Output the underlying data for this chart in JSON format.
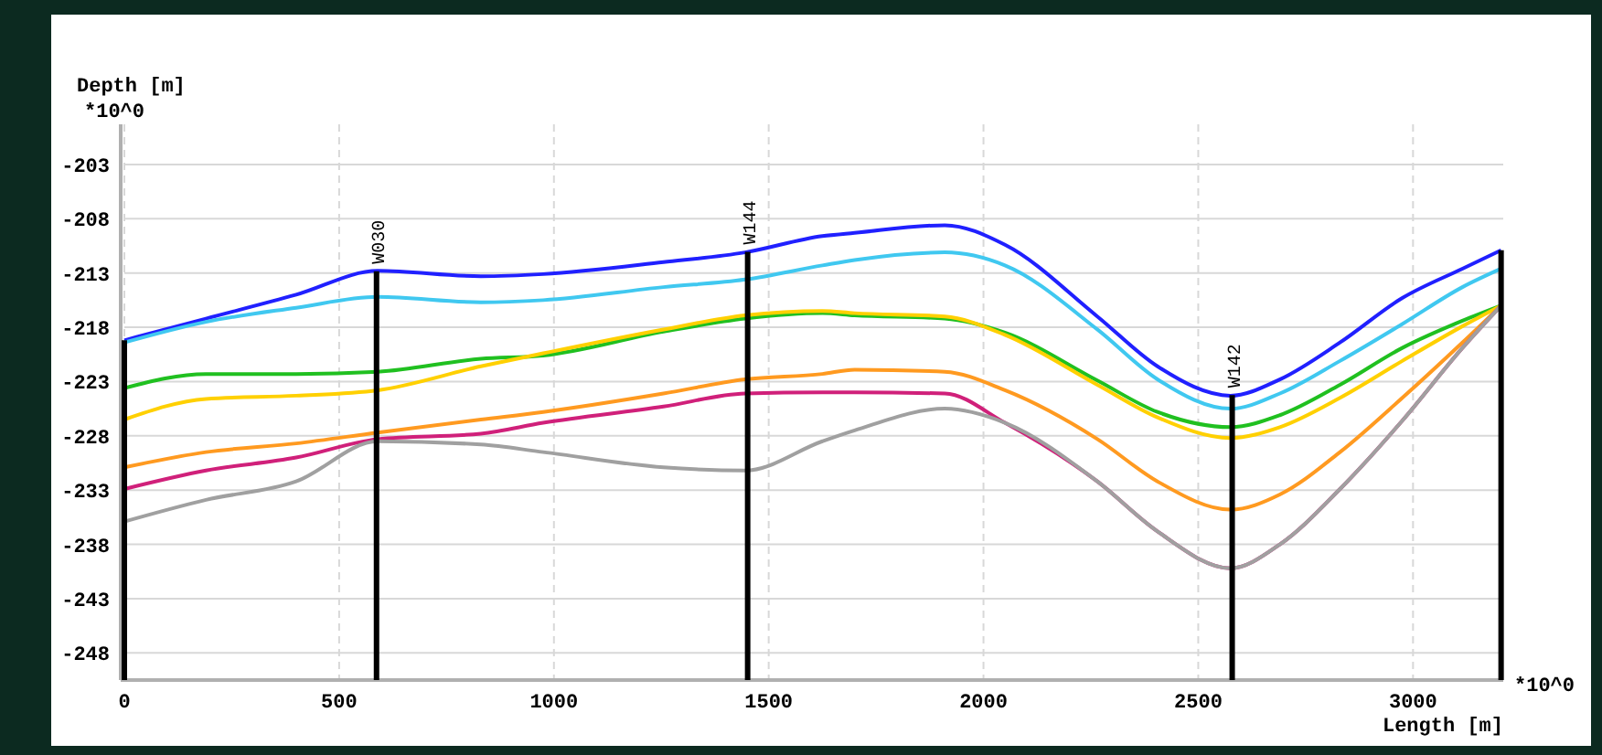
{
  "chart_data": {
    "type": "line",
    "xlabel": "Length [m]",
    "ylabel": "Depth [m]",
    "annotations": [
      "*10^0",
      "*10^0"
    ],
    "xlim": [
      0,
      3210
    ],
    "xticks": [
      0,
      500,
      1000,
      1500,
      2000,
      2500,
      3000
    ],
    "ylim": [
      -250.5,
      -199.3
    ],
    "yticks": [
      -203,
      -208,
      -213,
      -218,
      -223,
      -228,
      -233,
      -238,
      -243,
      -248
    ],
    "grid": true,
    "marker": "none",
    "line_style": "solid",
    "x": [
      0,
      190,
      400,
      590,
      830,
      975,
      1255,
      1445,
      1625,
      1700,
      1910,
      2050,
      2265,
      2405,
      2575,
      2690,
      2830,
      2975,
      3115,
      3205
    ],
    "series": [
      {
        "color": "#2020ff",
        "values": [
          -219.2,
          -217.2,
          -215.0,
          -212.8,
          -213.3,
          -213.1,
          -212.0,
          -211.1,
          -209.6,
          -209.3,
          -208.6,
          -210.4,
          -217.0,
          -221.6,
          -224.3,
          -222.8,
          -219.4,
          -215.3,
          -212.6,
          -210.9
        ]
      },
      {
        "color": "#40c8f0",
        "values": [
          -219.4,
          -217.5,
          -216.2,
          -215.2,
          -215.7,
          -215.5,
          -214.3,
          -213.6,
          -212.3,
          -211.8,
          -211.1,
          -212.3,
          -218.2,
          -222.8,
          -225.5,
          -224.1,
          -221.1,
          -217.7,
          -214.3,
          -212.6
        ]
      },
      {
        "color": "#20c020",
        "values": [
          -223.6,
          -222.3,
          -222.3,
          -222.1,
          -220.9,
          -220.6,
          -218.4,
          -217.2,
          -216.7,
          -216.9,
          -217.2,
          -218.5,
          -222.9,
          -225.8,
          -227.2,
          -226.1,
          -223.3,
          -219.9,
          -217.4,
          -216.0
        ]
      },
      {
        "color": "#ffd000",
        "values": [
          -226.5,
          -224.6,
          -224.3,
          -223.8,
          -221.6,
          -220.4,
          -218.2,
          -216.9,
          -216.5,
          -216.7,
          -217.0,
          -218.7,
          -223.3,
          -226.3,
          -228.2,
          -227.2,
          -224.5,
          -221.1,
          -217.9,
          -216.0
        ]
      },
      {
        "color": "#ff9a20",
        "values": [
          -230.9,
          -229.5,
          -228.7,
          -227.7,
          -226.5,
          -225.8,
          -224.1,
          -222.8,
          -222.3,
          -221.9,
          -222.1,
          -223.8,
          -228.3,
          -232.2,
          -234.8,
          -233.4,
          -229.5,
          -224.5,
          -219.4,
          -216.0
        ]
      },
      {
        "color": "#d0207a",
        "values": [
          -232.9,
          -231.2,
          -230.0,
          -228.3,
          -227.8,
          -226.8,
          -225.3,
          -224.1,
          -224.0,
          -224.0,
          -224.1,
          -226.8,
          -232.2,
          -236.8,
          -240.2,
          -238.0,
          -232.9,
          -226.6,
          -219.9,
          -216.0
        ]
      },
      {
        "color": "#a0a0a0",
        "values": [
          -235.9,
          -233.9,
          -232.2,
          -228.5,
          -228.8,
          -229.5,
          -230.9,
          -231.2,
          -228.5,
          -227.5,
          -225.5,
          -226.8,
          -232.2,
          -236.8,
          -240.2,
          -238.0,
          -232.9,
          -226.6,
          -219.9,
          -216.0
        ]
      }
    ],
    "ref_lines": [
      {
        "axis": "x",
        "value": 0,
        "label": null,
        "color": "#000000"
      },
      {
        "axis": "x",
        "value": 587,
        "label": "W030",
        "color": "#000000"
      },
      {
        "axis": "x",
        "value": 1451,
        "label": "W144",
        "color": "#000000"
      },
      {
        "axis": "x",
        "value": 2579,
        "label": "W142",
        "color": "#000000"
      },
      {
        "axis": "x",
        "value": 3205,
        "label": null,
        "color": "#000000"
      }
    ]
  }
}
